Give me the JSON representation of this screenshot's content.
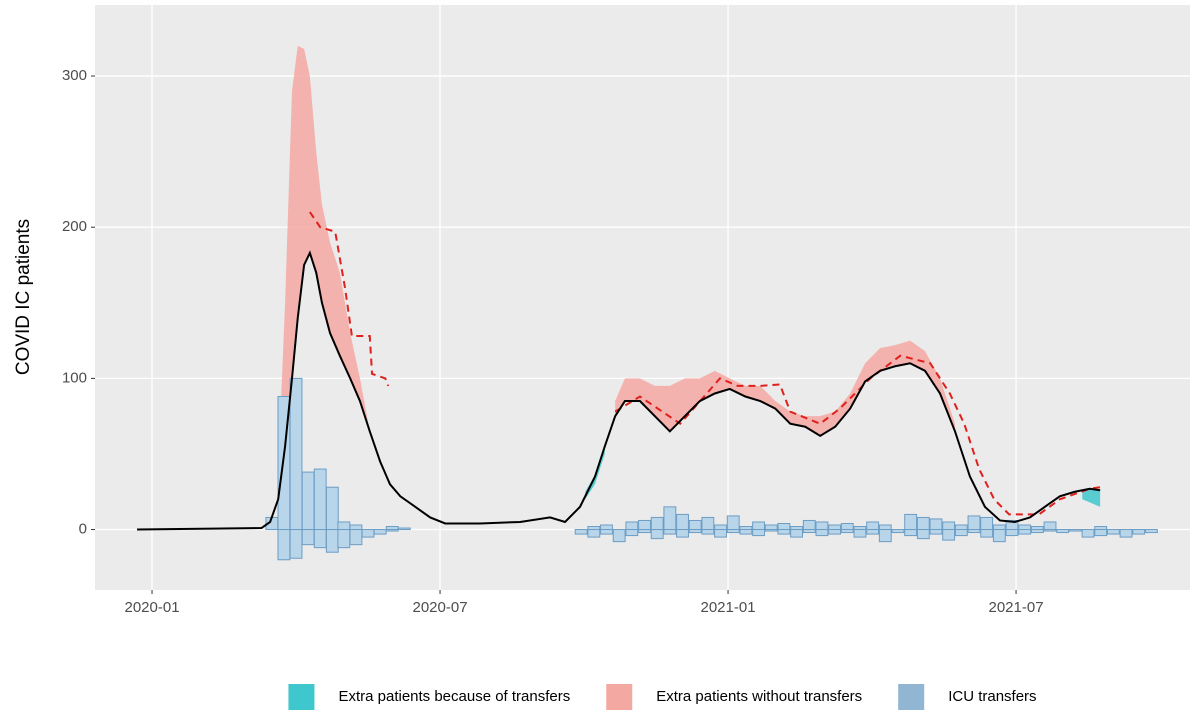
{
  "chart_data": {
    "type": "line",
    "ylabel": "COVID IC patients",
    "xlim": [
      2019.901,
      2021.802
    ],
    "xticks": [
      {
        "value": 2020.0,
        "label": "2020-01"
      },
      {
        "value": 2020.5,
        "label": "2020-07"
      },
      {
        "value": 2021.0,
        "label": "2021-01"
      },
      {
        "value": 2021.5,
        "label": "2021-07"
      }
    ],
    "ylim": [
      -40,
      347
    ],
    "yticks": [
      0,
      100,
      200,
      300
    ],
    "grid": true,
    "legend": "bottom",
    "series": [
      {
        "type": "area",
        "name": "Extra patients because of transfers",
        "color": "#3ec7cc",
        "x": [
          2020.752,
          2020.769,
          2020.786,
          null,
          2021.615,
          2021.628,
          2021.646
        ],
        "low": [
          20,
          30,
          50,
          null,
          20,
          18,
          15
        ],
        "high": [
          25,
          36,
          55,
          null,
          25,
          27,
          26
        ]
      },
      {
        "type": "area",
        "name": "Extra patients without transfers",
        "color": "#f4a8a2",
        "x": [
          2020.219,
          2020.231,
          2020.243,
          2020.253,
          2020.264,
          2020.274,
          2020.285,
          2020.295,
          2020.309,
          2020.326,
          2020.344,
          2020.361,
          2020.378,
          null,
          2020.804,
          2020.821,
          2020.847,
          2020.873,
          2020.899,
          2020.925,
          2020.951,
          2020.977,
          2021.003,
          2021.03,
          2021.056,
          2021.082,
          2021.108,
          2021.134,
          2021.16,
          2021.186,
          2021.212,
          2021.238,
          2021.264,
          2021.29,
          2021.316,
          2021.342,
          2021.368,
          2021.394
        ],
        "low": [
          20,
          55,
          100,
          140,
          175,
          183,
          170,
          150,
          130,
          115,
          100,
          85,
          65,
          null,
          75,
          85,
          85,
          75,
          65,
          75,
          85,
          90,
          93,
          88,
          85,
          80,
          70,
          68,
          62,
          68,
          80,
          98,
          105,
          108,
          110,
          105,
          90,
          65
        ],
        "high": [
          40,
          150,
          290,
          320,
          318,
          300,
          250,
          215,
          190,
          170,
          130,
          100,
          65,
          null,
          85,
          100,
          100,
          95,
          95,
          100,
          100,
          105,
          100,
          95,
          95,
          85,
          78,
          75,
          75,
          78,
          90,
          110,
          120,
          122,
          125,
          118,
          100,
          70
        ]
      },
      {
        "type": "bar",
        "name": "ICU transfers",
        "color": "#b9d5ea",
        "edge": "#6c9dc4",
        "x": [
          2020.208,
          2020.229,
          2020.25,
          2020.271,
          2020.292,
          2020.313,
          2020.333,
          2020.354,
          2020.375,
          2020.396,
          2020.417,
          2020.438,
          2020.458,
          2020.745,
          2020.767,
          2020.789,
          2020.811,
          2020.833,
          2020.855,
          2020.877,
          2020.899,
          2020.921,
          2020.943,
          2020.965,
          2020.987,
          2021.009,
          2021.031,
          2021.053,
          2021.075,
          2021.097,
          2021.119,
          2021.141,
          2021.163,
          2021.185,
          2021.207,
          2021.229,
          2021.251,
          2021.273,
          2021.295,
          2021.317,
          2021.339,
          2021.361,
          2021.383,
          2021.405,
          2021.427,
          2021.449,
          2021.471,
          2021.493,
          2021.515,
          2021.537,
          2021.559,
          2021.581,
          2021.603,
          2021.625,
          2021.647,
          2021.669,
          2021.691,
          2021.713,
          2021.735
        ],
        "values": [
          8,
          88,
          100,
          38,
          40,
          28,
          5,
          3,
          0,
          0,
          2,
          1,
          0,
          0,
          2,
          3,
          0,
          5,
          6,
          8,
          15,
          10,
          6,
          8,
          3,
          9,
          2,
          5,
          3,
          4,
          2,
          6,
          5,
          3,
          4,
          2,
          5,
          3,
          0,
          10,
          8,
          7,
          5,
          3,
          9,
          8,
          3,
          6,
          3,
          2,
          5,
          0,
          0,
          0,
          2,
          0,
          0,
          0,
          0
        ],
        "values_out": [
          0,
          -20,
          -19,
          -10,
          -12,
          -15,
          -12,
          -10,
          -5,
          -3,
          -1,
          0,
          0,
          -3,
          -5,
          -3,
          -8,
          -4,
          -2,
          -6,
          -3,
          -5,
          -2,
          -3,
          -5,
          -2,
          -3,
          -4,
          -1,
          -3,
          -5,
          -2,
          -4,
          -3,
          -2,
          -5,
          -3,
          -8,
          -2,
          -4,
          -6,
          -3,
          -7,
          -4,
          -2,
          -5,
          -8,
          -4,
          -3,
          -2,
          -1,
          -2,
          -1,
          -5,
          -4,
          -3,
          -5,
          -3,
          -2
        ]
      },
      {
        "type": "line",
        "color": "#e0201c",
        "dash": true,
        "x": [
          2020.274,
          2020.292,
          2020.318,
          2020.335,
          2020.347,
          2020.378,
          2020.382,
          2020.405,
          2020.41,
          null,
          2020.804,
          2020.847,
          2020.917,
          2020.986,
          2021.017,
          2021.056,
          2021.09,
          2021.108,
          2021.16,
          2021.194,
          2021.247,
          2021.299,
          2021.351,
          2021.385,
          2021.41,
          2021.436,
          2021.462,
          2021.488,
          2021.54,
          2021.576,
          2021.628,
          2021.646
        ],
        "values": [
          210,
          200,
          197,
          160,
          128,
          128,
          103,
          100,
          95,
          null,
          78,
          88,
          70,
          100,
          95,
          95,
          96,
          78,
          70,
          80,
          100,
          115,
          110,
          90,
          70,
          40,
          20,
          10,
          10,
          20,
          27,
          28
        ]
      },
      {
        "type": "line",
        "color": "#000000",
        "x": [
          2019.974,
          2020.19,
          2020.205,
          2020.219,
          2020.231,
          2020.243,
          2020.253,
          2020.264,
          2020.274,
          2020.285,
          2020.295,
          2020.309,
          2020.326,
          2020.344,
          2020.361,
          2020.378,
          2020.396,
          2020.413,
          2020.431,
          2020.457,
          2020.483,
          2020.509,
          2020.569,
          2020.639,
          2020.691,
          2020.717,
          2020.743,
          2020.769,
          2020.786,
          2020.804,
          2020.821,
          2020.847,
          2020.873,
          2020.899,
          2020.925,
          2020.951,
          2020.977,
          2021.003,
          2021.03,
          2021.056,
          2021.082,
          2021.108,
          2021.134,
          2021.16,
          2021.186,
          2021.212,
          2021.238,
          2021.264,
          2021.29,
          2021.316,
          2021.342,
          2021.368,
          2021.394,
          2021.42,
          2021.446,
          2021.472,
          2021.498,
          2021.524,
          2021.55,
          2021.576,
          2021.602,
          2021.628,
          2021.646
        ],
        "values": [
          0,
          1,
          5,
          20,
          55,
          100,
          140,
          175,
          183,
          170,
          150,
          130,
          115,
          100,
          85,
          65,
          45,
          30,
          22,
          15,
          8,
          4,
          4,
          5,
          8,
          5,
          15,
          35,
          55,
          75,
          85,
          85,
          75,
          65,
          75,
          85,
          90,
          93,
          88,
          85,
          80,
          70,
          68,
          62,
          68,
          80,
          98,
          105,
          108,
          110,
          105,
          90,
          65,
          35,
          15,
          6,
          5,
          8,
          15,
          22,
          25,
          27,
          26
        ]
      }
    ]
  }
}
